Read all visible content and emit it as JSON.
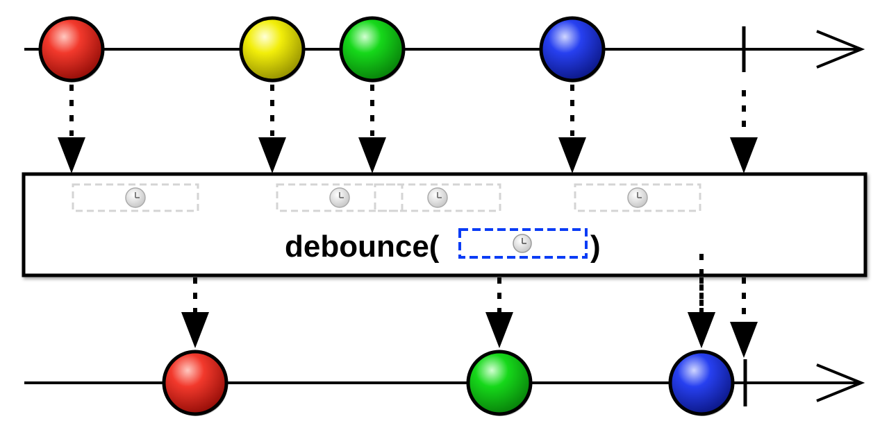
{
  "operator": {
    "prefix": "debounce(",
    "suffix": ")",
    "parameter_icon": "clock-icon",
    "parameter_border_color": "#0a3cf5"
  },
  "marble_colors": {
    "red": "#e0150b",
    "yellow": "#f2ee0a",
    "green": "#16d81a",
    "blue": "#1a32e0"
  },
  "input_stream": {
    "marbles": [
      {
        "color": "red"
      },
      {
        "color": "yellow"
      },
      {
        "color": "green"
      },
      {
        "color": "blue"
      }
    ],
    "completes": true
  },
  "debounce_windows": [
    {
      "icon": "clock-icon"
    },
    {
      "icon": "clock-icon"
    },
    {
      "icon": "clock-icon"
    },
    {
      "icon": "clock-icon"
    }
  ],
  "output_stream": {
    "marbles": [
      {
        "color": "red"
      },
      {
        "color": "green"
      },
      {
        "color": "blue"
      }
    ],
    "completes": true
  }
}
